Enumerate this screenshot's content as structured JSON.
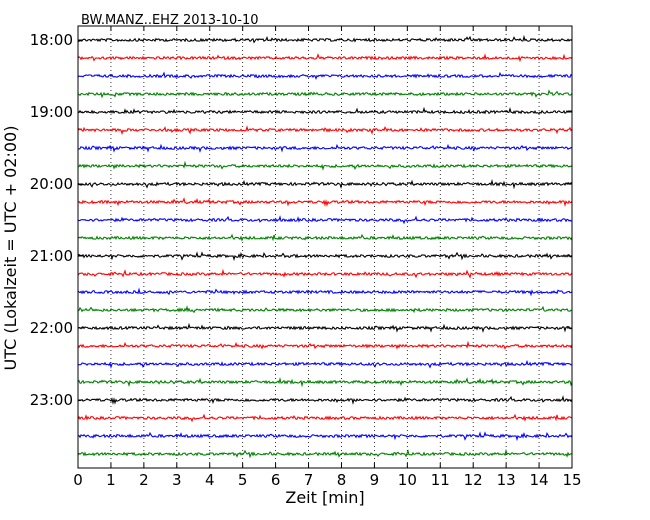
{
  "chart_data": {
    "type": "line",
    "title": "BW.MANZ..EHZ 2013-10-10",
    "xlabel": "Zeit  [min]",
    "ylabel": "UTC (Lokalzeit = UTC + 02:00)",
    "xlim": [
      0,
      15
    ],
    "x_ticks": [
      "0",
      "1",
      "2",
      "3",
      "4",
      "5",
      "6",
      "7",
      "8",
      "9",
      "10",
      "11",
      "12",
      "13",
      "14",
      "15"
    ],
    "y_ticks": [
      "18:00",
      "19:00",
      "20:00",
      "21:00",
      "22:00",
      "23:00"
    ],
    "y_tick_rows": [
      0,
      4,
      8,
      12,
      16,
      20
    ],
    "grid": "vertical dotted",
    "trace_interval_min": 15,
    "trace_count": 24,
    "trace_colors": [
      "#000000",
      "#ff0000",
      "#0000ff",
      "#008000"
    ]
  }
}
